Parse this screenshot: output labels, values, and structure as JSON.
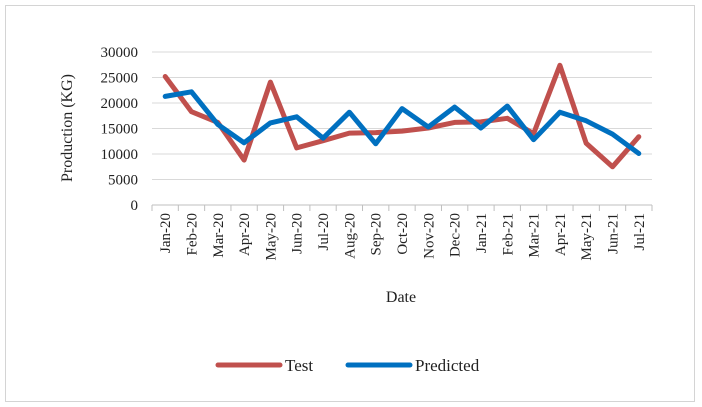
{
  "chart_data": {
    "type": "line",
    "title": "",
    "xlabel": "Date",
    "ylabel": "Production (KG)",
    "ylim": [
      0,
      30000
    ],
    "yticks": [
      0,
      5000,
      10000,
      15000,
      20000,
      25000,
      30000
    ],
    "grid": "horizontal",
    "legend_position": "bottom",
    "categories": [
      "Jan-20",
      "Feb-20",
      "Mar-20",
      "Apr-20",
      "May-20",
      "Jun-20",
      "Jul-20",
      "Aug-20",
      "Sep-20",
      "Oct-20",
      "Nov-20",
      "Dec-20",
      "Jan-21",
      "Feb-21",
      "Mar-21",
      "Apr-21",
      "May-21",
      "Jun-21",
      "Jul-21"
    ],
    "series": [
      {
        "name": "Test",
        "color": "#c0504d",
        "values": [
          25200,
          18300,
          16200,
          8800,
          24100,
          11200,
          12600,
          14100,
          14200,
          14500,
          15100,
          16200,
          16300,
          17000,
          14000,
          27400,
          12100,
          7500,
          13400
        ]
      },
      {
        "name": "Predicted",
        "color": "#0070c0",
        "values": [
          21300,
          22200,
          15800,
          12200,
          16100,
          17300,
          13100,
          18200,
          12000,
          18900,
          15300,
          19200,
          15100,
          19400,
          12800,
          18200,
          16500,
          13900,
          10100
        ]
      }
    ]
  }
}
